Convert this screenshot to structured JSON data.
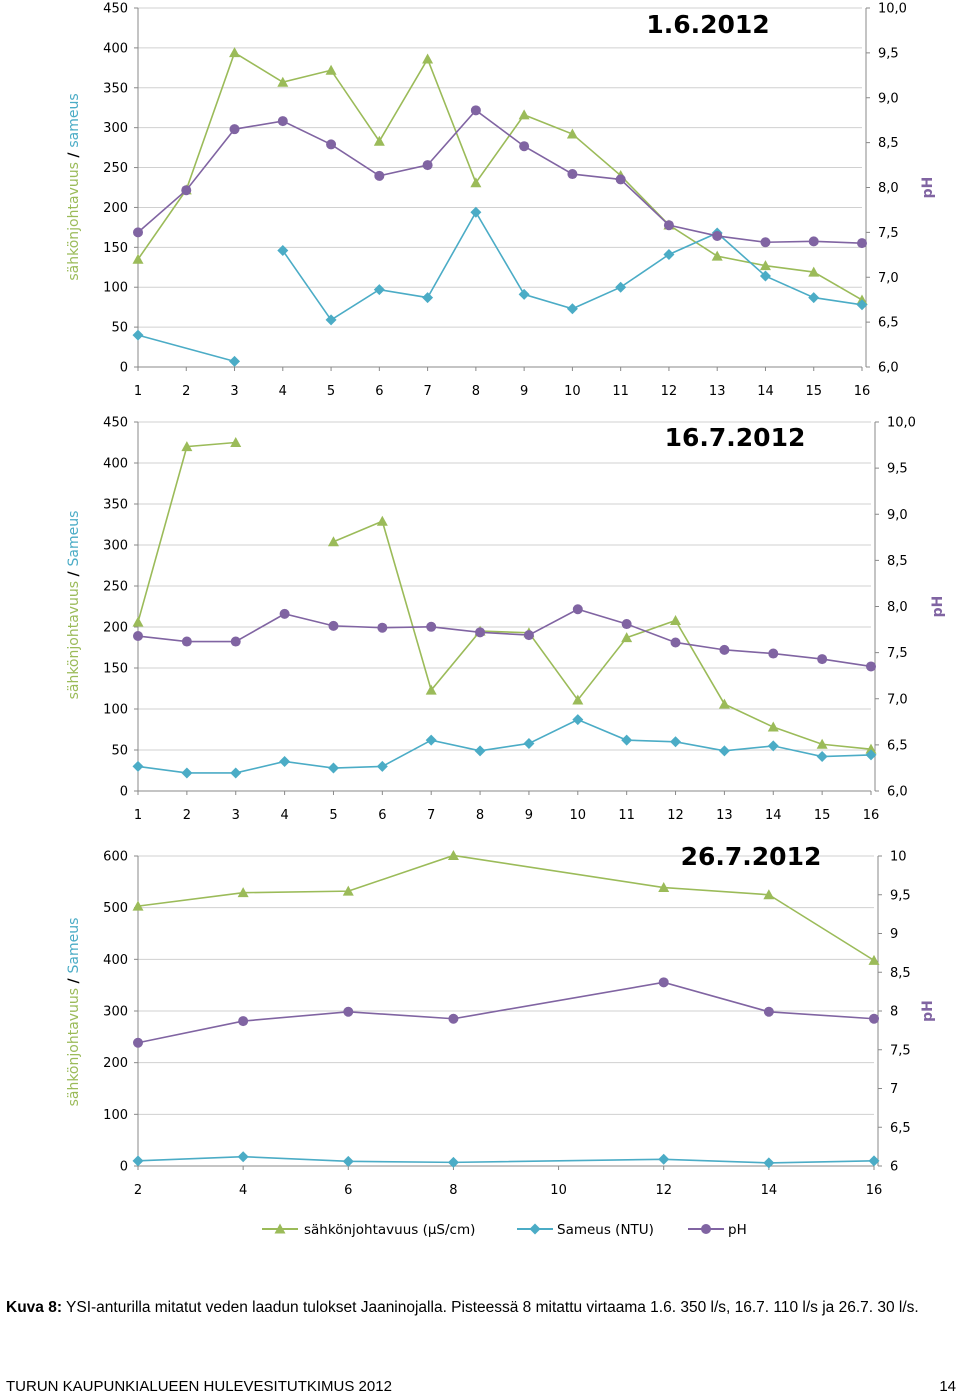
{
  "chart_data": [
    {
      "type": "line",
      "title": "1.6.2012",
      "ylabel_left_part1": "sähkönjohtavuus",
      "ylabel_left_sep": "/",
      "ylabel_left_part2": "sameus",
      "ylabel_right": "pH",
      "x_ticks": [
        "1",
        "2",
        "3",
        "4",
        "5",
        "6",
        "7",
        "8",
        "9",
        "10",
        "11",
        "12",
        "13",
        "14",
        "15",
        "16"
      ],
      "y_left_ticks": [
        "0",
        "50",
        "100",
        "150",
        "200",
        "250",
        "300",
        "350",
        "400",
        "450"
      ],
      "y_right_ticks": [
        "6,0",
        "6,5",
        "7,0",
        "7,5",
        "8,0",
        "8,5",
        "9,0",
        "9,5",
        "10,0"
      ],
      "ylim_left": [
        0,
        450
      ],
      "ylim_right": [
        6,
        10
      ],
      "xlim": [
        1,
        16
      ],
      "grid": true,
      "series": [
        {
          "key": "conductivity",
          "axis": "left",
          "color": "#9bbb59",
          "marker": "triangle",
          "x": [
            1,
            2,
            3,
            4,
            5,
            6,
            7,
            8,
            9,
            10,
            11,
            12,
            13,
            14,
            15,
            16
          ],
          "y": [
            135,
            222,
            394,
            357,
            372,
            283,
            386,
            231,
            316,
            292,
            240,
            178,
            139,
            127,
            119,
            84
          ]
        },
        {
          "key": "turbidity",
          "axis": "left",
          "color": "#4bacc6",
          "marker": "diamond",
          "x": [
            1,
            3,
            4,
            5,
            6,
            7,
            8,
            9,
            10,
            11,
            12,
            13,
            14,
            15,
            16
          ],
          "y": [
            40,
            7,
            146,
            59,
            97,
            87,
            194,
            91,
            73,
            100,
            141,
            168,
            114,
            87,
            78
          ],
          "breaks_after": [
            1
          ]
        },
        {
          "key": "ph",
          "axis": "right",
          "color": "#8064a2",
          "marker": "circle",
          "x": [
            1,
            2,
            3,
            4,
            5,
            6,
            7,
            8,
            9,
            10,
            11,
            12,
            13,
            14,
            15,
            16
          ],
          "y": [
            7.5,
            7.97,
            8.65,
            8.74,
            8.48,
            8.13,
            8.25,
            8.86,
            8.46,
            8.15,
            8.09,
            7.58,
            7.46,
            7.39,
            7.4,
            7.38
          ]
        }
      ]
    },
    {
      "type": "line",
      "title": "16.7.2012",
      "ylabel_left_part1": "sähkönjohtavuus",
      "ylabel_left_sep": "/",
      "ylabel_left_part2": "Sameus",
      "ylabel_right": "pH",
      "x_ticks": [
        "1",
        "2",
        "3",
        "4",
        "5",
        "6",
        "7",
        "8",
        "9",
        "10",
        "11",
        "12",
        "13",
        "14",
        "15",
        "16"
      ],
      "y_left_ticks": [
        "0",
        "50",
        "100",
        "150",
        "200",
        "250",
        "300",
        "350",
        "400",
        "450"
      ],
      "y_right_ticks": [
        "6,0",
        "6,5",
        "7,0",
        "7,5",
        "8,0",
        "8,5",
        "9,0",
        "9,5",
        "10,0"
      ],
      "ylim_left": [
        0,
        450
      ],
      "ylim_right": [
        6,
        10
      ],
      "xlim": [
        1,
        16
      ],
      "grid": true,
      "series": [
        {
          "key": "conductivity",
          "axis": "left",
          "color": "#9bbb59",
          "marker": "triangle",
          "x": [
            1,
            2,
            3,
            5,
            6,
            7,
            8,
            9,
            10,
            11,
            12,
            13,
            14,
            15,
            16
          ],
          "y": [
            206,
            420,
            425,
            304,
            329,
            123,
            195,
            193,
            111,
            187,
            208,
            106,
            78,
            57,
            51
          ],
          "breaks_after": [
            2
          ]
        },
        {
          "key": "turbidity",
          "axis": "left",
          "color": "#4bacc6",
          "marker": "diamond",
          "x": [
            1,
            2,
            3,
            4,
            5,
            6,
            7,
            8,
            9,
            10,
            11,
            12,
            13,
            14,
            15,
            16
          ],
          "y": [
            30,
            22,
            22,
            36,
            28,
            30,
            62,
            49,
            58,
            87,
            62,
            60,
            49,
            55,
            42,
            44
          ]
        },
        {
          "key": "ph",
          "axis": "right",
          "color": "#8064a2",
          "marker": "circle",
          "x": [
            1,
            2,
            3,
            4,
            5,
            6,
            7,
            8,
            9,
            10,
            11,
            12,
            13,
            14,
            15,
            16
          ],
          "y": [
            7.68,
            7.62,
            7.62,
            7.92,
            7.79,
            7.77,
            7.78,
            7.72,
            7.69,
            7.97,
            7.81,
            7.61,
            7.53,
            7.49,
            7.43,
            7.35
          ]
        }
      ]
    },
    {
      "type": "line",
      "title": "26.7.2012",
      "ylabel_left_part1": "sähkönjohtavuus",
      "ylabel_left_sep": "/",
      "ylabel_left_part2": "Sameus",
      "ylabel_right": "pH",
      "x_ticks": [
        "2",
        "4",
        "6",
        "8",
        "10",
        "12",
        "14",
        "16"
      ],
      "y_left_ticks": [
        "0",
        "100",
        "200",
        "300",
        "400",
        "500",
        "600"
      ],
      "y_right_ticks": [
        "6",
        "6,5",
        "7",
        "7,5",
        "8",
        "8,5",
        "9",
        "9,5",
        "10"
      ],
      "ylim_left": [
        0,
        600
      ],
      "ylim_right": [
        6,
        10
      ],
      "xlim": [
        2,
        16
      ],
      "grid": true,
      "series": [
        {
          "key": "conductivity",
          "axis": "left",
          "color": "#9bbb59",
          "marker": "triangle",
          "x": [
            2,
            4,
            6,
            8,
            12,
            14,
            16
          ],
          "y": [
            503,
            529,
            532,
            601,
            539,
            525,
            398
          ]
        },
        {
          "key": "turbidity",
          "axis": "left",
          "color": "#4bacc6",
          "marker": "diamond",
          "x": [
            2,
            4,
            6,
            8,
            12,
            14,
            16
          ],
          "y": [
            10,
            18,
            9,
            7,
            13,
            6,
            10
          ]
        },
        {
          "key": "ph",
          "axis": "right",
          "color": "#8064a2",
          "marker": "circle",
          "x": [
            2,
            4,
            6,
            8,
            12,
            14,
            16
          ],
          "y": [
            7.59,
            7.87,
            7.99,
            7.9,
            8.37,
            7.99,
            7.9
          ]
        }
      ]
    }
  ],
  "legend": [
    {
      "label": "sähkönjohtavuus (µS/cm)",
      "color": "#9bbb59",
      "marker": "triangle"
    },
    {
      "label": "Sameus (NTU)",
      "color": "#4bacc6",
      "marker": "diamond"
    },
    {
      "label": "pH",
      "color": "#8064a2",
      "marker": "circle"
    }
  ],
  "caption": {
    "label": "Kuva 8:",
    "text": "YSI-anturilla mitatut veden laadun tulokset Jaaninojalla. Pisteessä 8 mitattu virtaama 1.6. 350 l/s, 16.7. 110 l/s ja 26.7. 30 l/s."
  },
  "footer": {
    "left": "TURUN KAUPUNKIALUEEN HULEVESITUTKIMUS 2012",
    "right": "14"
  }
}
